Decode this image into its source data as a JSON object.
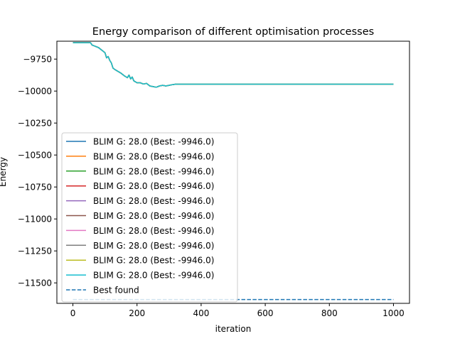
{
  "chart_data": {
    "type": "line",
    "title": "Energy comparison of different optimisation processes",
    "xlabel": "iteration",
    "ylabel": "Energy",
    "xlim": [
      -50,
      1050
    ],
    "ylim": [
      -11660,
      -9610
    ],
    "xticks": [
      0,
      200,
      400,
      600,
      800,
      1000
    ],
    "xtick_labels": [
      "0",
      "200",
      "400",
      "600",
      "800",
      "1000"
    ],
    "yticks": [
      -9750,
      -10000,
      -10250,
      -10500,
      -10750,
      -11000,
      -11250,
      -11500
    ],
    "ytick_labels": [
      "−9750",
      "−10000",
      "−10250",
      "−10500",
      "−10750",
      "−11000",
      "−11250",
      "−11500"
    ],
    "grid": false,
    "legend_position": "lower-left",
    "series": [
      {
        "name": "BLIM G: 28.0 (Best: -9946.0)",
        "color": "#1f77b4",
        "style": "solid"
      },
      {
        "name": "BLIM G: 28.0 (Best: -9946.0)",
        "color": "#ff7f0e",
        "style": "solid"
      },
      {
        "name": "BLIM G: 28.0 (Best: -9946.0)",
        "color": "#2ca02c",
        "style": "solid"
      },
      {
        "name": "BLIM G: 28.0 (Best: -9946.0)",
        "color": "#d62728",
        "style": "solid"
      },
      {
        "name": "BLIM G: 28.0 (Best: -9946.0)",
        "color": "#9467bd",
        "style": "solid"
      },
      {
        "name": "BLIM G: 28.0 (Best: -9946.0)",
        "color": "#8c564b",
        "style": "solid"
      },
      {
        "name": "BLIM G: 28.0 (Best: -9946.0)",
        "color": "#e377c2",
        "style": "solid"
      },
      {
        "name": "BLIM G: 28.0 (Best: -9946.0)",
        "color": "#7f7f7f",
        "style": "solid"
      },
      {
        "name": "BLIM G: 28.0 (Best: -9946.0)",
        "color": "#bcbd22",
        "style": "solid"
      },
      {
        "name": "BLIM G: 28.0 (Best: -9946.0)",
        "color": "#17becf",
        "style": "solid"
      },
      {
        "name": "Best found",
        "color": "#1f77b4",
        "style": "dashed"
      }
    ],
    "energy_curve": {
      "x": [
        0,
        20,
        40,
        55,
        60,
        70,
        80,
        90,
        100,
        105,
        110,
        115,
        120,
        125,
        130,
        140,
        150,
        160,
        170,
        175,
        180,
        185,
        190,
        200,
        210,
        220,
        230,
        240,
        250,
        260,
        270,
        280,
        290,
        300,
        310,
        320,
        330,
        400,
        600,
        800,
        1000
      ],
      "y": [
        -9622,
        -9622,
        -9622,
        -9622,
        -9640,
        -9650,
        -9660,
        -9680,
        -9700,
        -9740,
        -9730,
        -9760,
        -9780,
        -9820,
        -9830,
        -9845,
        -9860,
        -9880,
        -9895,
        -9875,
        -9905,
        -9890,
        -9920,
        -9935,
        -9935,
        -9945,
        -9940,
        -9960,
        -9965,
        -9970,
        -9960,
        -9955,
        -9960,
        -9955,
        -9950,
        -9946,
        -9946,
        -9946,
        -9946,
        -9946,
        -9946
      ]
    },
    "best_found": {
      "x": [
        0,
        1000
      ],
      "y": [
        -11630,
        -11630
      ]
    }
  }
}
